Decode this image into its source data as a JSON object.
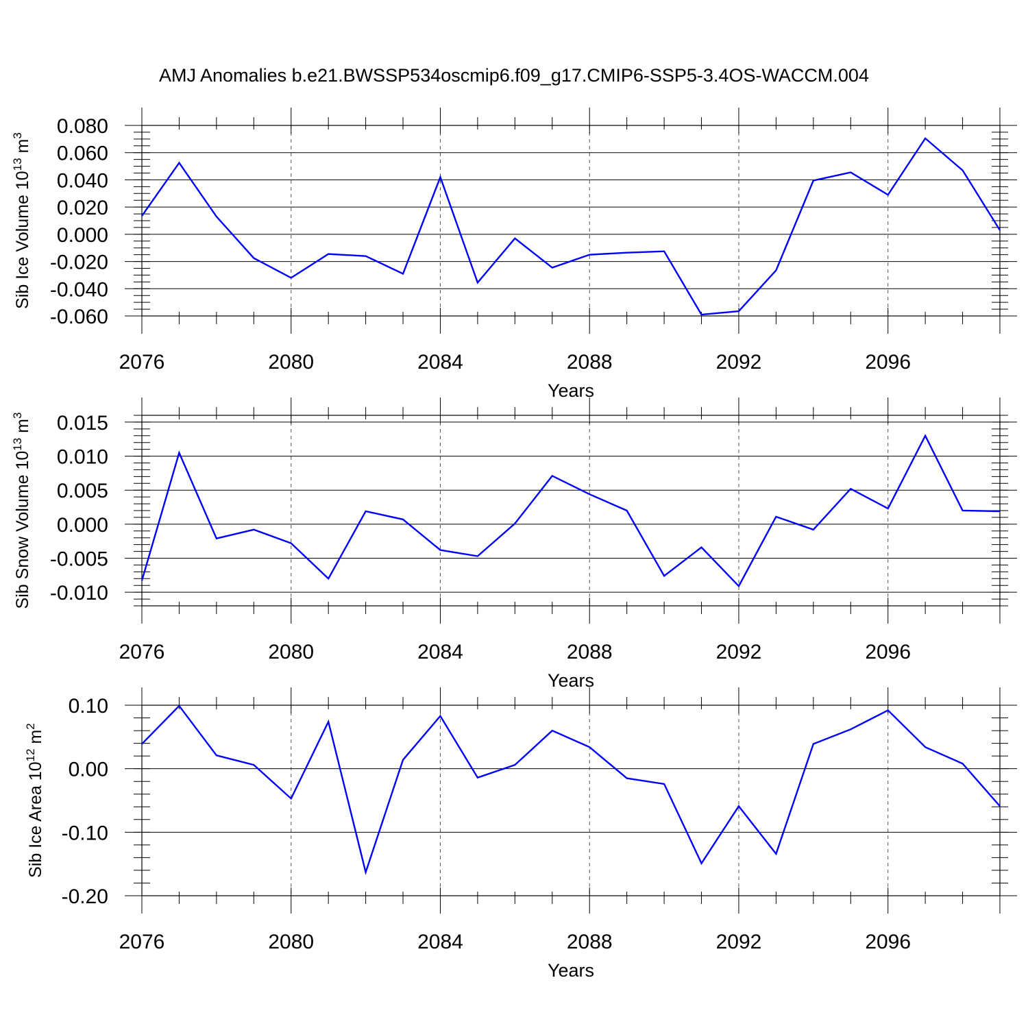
{
  "figure": {
    "title": "AMJ Anomalies b.e21.BWSSP534oscmip6.f09_g17.CMIP6-SSP5-3.4OS-WACCM.004",
    "line_color": "#0000ff"
  },
  "chart_data": [
    {
      "type": "line",
      "ylabel": "Sib Ice Volume 10",
      "ylabel_exp": "13",
      "ylabel_unit": " m",
      "ylabel_unit_exp": "3",
      "xlabel": "Years",
      "xlim": [
        2076,
        2099
      ],
      "ylim": [
        -0.06,
        0.08
      ],
      "yticks": [
        -0.06,
        -0.04,
        -0.02,
        0.0,
        0.02,
        0.04,
        0.06,
        0.08
      ],
      "ytick_labels": [
        "-0.060",
        "-0.040",
        "-0.020",
        "0.000",
        "0.020",
        "0.040",
        "0.060",
        "0.080"
      ],
      "yminor_step": 0.005,
      "xticks": [
        2076,
        2080,
        2084,
        2088,
        2092,
        2096
      ],
      "xtick_labels": [
        "2076",
        "2080",
        "2084",
        "2088",
        "2092",
        "2096"
      ],
      "x": [
        2076,
        2077,
        2078,
        2079,
        2080,
        2081,
        2082,
        2083,
        2084,
        2085,
        2086,
        2087,
        2088,
        2089,
        2090,
        2091,
        2092,
        2093,
        2094,
        2095,
        2096,
        2097,
        2098,
        2099
      ],
      "values": [
        0.0135,
        0.0525,
        0.013,
        -0.0175,
        -0.032,
        -0.0145,
        -0.016,
        -0.029,
        0.042,
        -0.0355,
        -0.003,
        -0.0245,
        -0.015,
        -0.0135,
        -0.0125,
        -0.059,
        -0.0565,
        -0.0265,
        0.0395,
        0.0455,
        0.029,
        0.0705,
        0.047,
        0.003
      ],
      "grid_x": [
        2080,
        2084,
        2088,
        2092,
        2096
      ]
    },
    {
      "type": "line",
      "ylabel": "Sib Snow Volume 10",
      "ylabel_exp": "13",
      "ylabel_unit": " m",
      "ylabel_unit_exp": "3",
      "xlabel": "Years",
      "xlim": [
        2076,
        2099
      ],
      "ylim": [
        -0.012,
        0.016
      ],
      "yticks": [
        -0.01,
        -0.005,
        0.0,
        0.005,
        0.01,
        0.015
      ],
      "ytick_labels": [
        "-0.010",
        "-0.005",
        "0.000",
        "0.005",
        "0.010",
        "0.015"
      ],
      "yminor_step": 0.001,
      "xticks": [
        2076,
        2080,
        2084,
        2088,
        2092,
        2096
      ],
      "xtick_labels": [
        "2076",
        "2080",
        "2084",
        "2088",
        "2092",
        "2096"
      ],
      "x": [
        2076,
        2077,
        2078,
        2079,
        2080,
        2081,
        2082,
        2083,
        2084,
        2085,
        2086,
        2087,
        2088,
        2089,
        2090,
        2091,
        2092,
        2093,
        2094,
        2095,
        2096,
        2097,
        2098,
        2099
      ],
      "values": [
        -0.0083,
        0.0105,
        -0.0021,
        -0.0008,
        -0.0028,
        -0.008,
        0.0019,
        0.0007,
        -0.0038,
        -0.0047,
        0.0001,
        0.0071,
        0.0044,
        0.002,
        -0.0076,
        -0.0034,
        -0.0091,
        0.0011,
        -0.0008,
        0.0052,
        0.0023,
        0.013,
        0.002,
        0.0019
      ],
      "grid_x": [
        2080,
        2084,
        2088,
        2092,
        2096
      ]
    },
    {
      "type": "line",
      "ylabel": "Sib Ice Area 10",
      "ylabel_exp": "12",
      "ylabel_unit": " m",
      "ylabel_unit_exp": "2",
      "xlabel": "Years",
      "xlim": [
        2076,
        2099
      ],
      "ylim": [
        -0.2,
        0.1
      ],
      "yticks": [
        -0.2,
        -0.1,
        0.0,
        0.1
      ],
      "ytick_labels": [
        "-0.20",
        "-0.10",
        "0.00",
        "0.10"
      ],
      "yminor_step": 0.02,
      "xticks": [
        2076,
        2080,
        2084,
        2088,
        2092,
        2096
      ],
      "xtick_labels": [
        "2076",
        "2080",
        "2084",
        "2088",
        "2092",
        "2096"
      ],
      "x": [
        2076,
        2077,
        2078,
        2079,
        2080,
        2081,
        2082,
        2083,
        2084,
        2085,
        2086,
        2087,
        2088,
        2089,
        2090,
        2091,
        2092,
        2093,
        2094,
        2095,
        2096,
        2097,
        2098,
        2099
      ],
      "values": [
        0.039,
        0.099,
        0.021,
        0.006,
        -0.047,
        0.074,
        -0.163,
        0.014,
        0.083,
        -0.014,
        0.006,
        0.06,
        0.034,
        -0.015,
        -0.024,
        -0.149,
        -0.059,
        -0.134,
        0.039,
        0.062,
        0.092,
        0.034,
        0.008,
        -0.059
      ],
      "grid_x": [
        2080,
        2084,
        2088,
        2092,
        2096
      ]
    }
  ]
}
